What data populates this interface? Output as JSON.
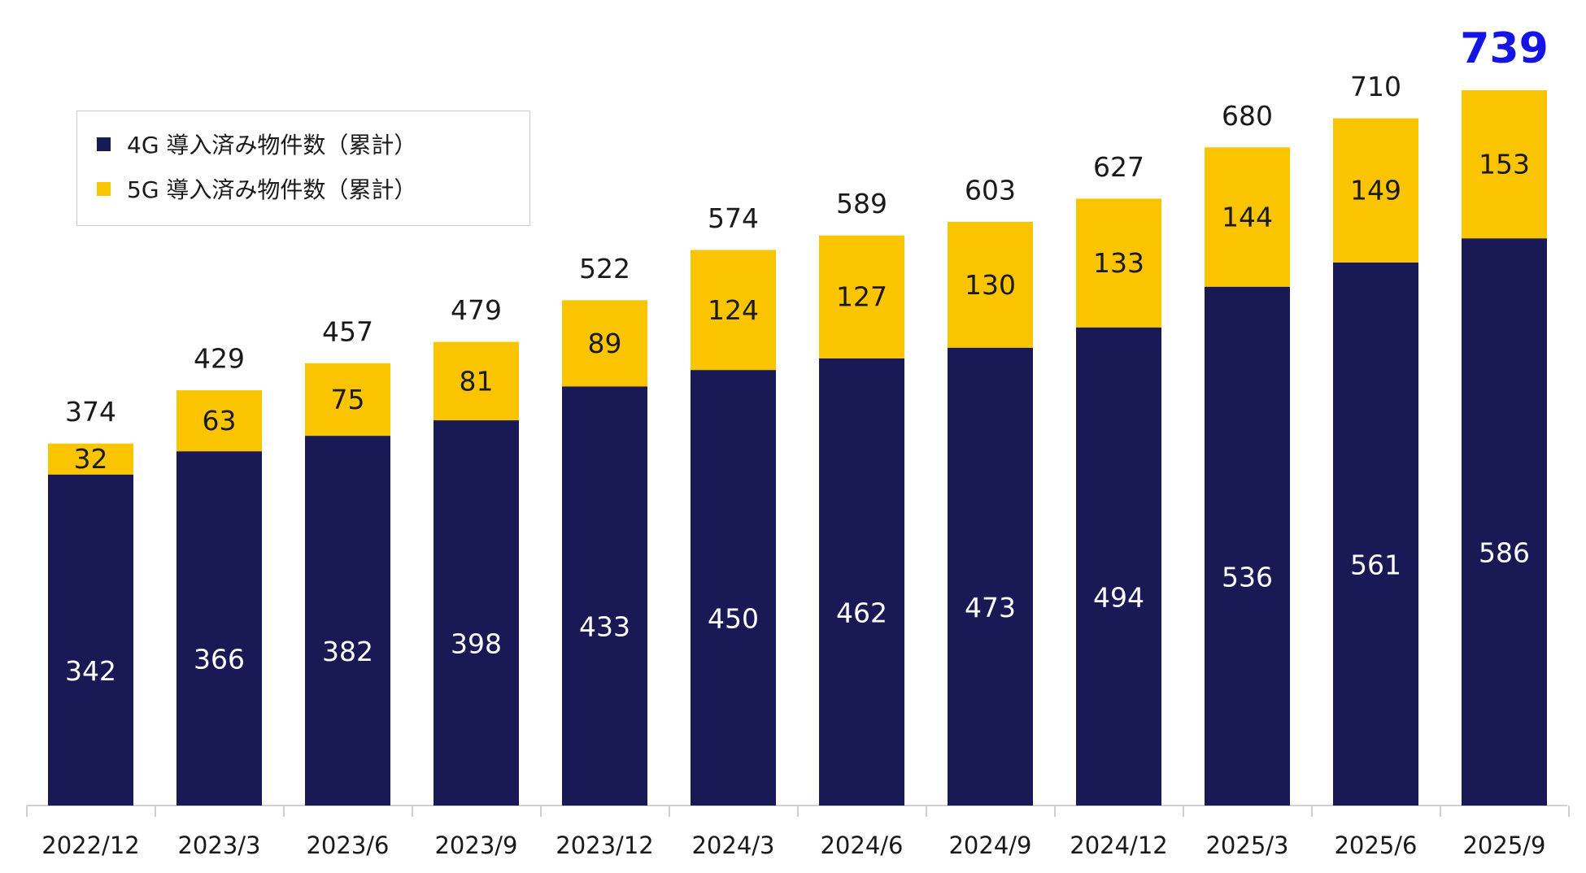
{
  "chart_data": {
    "type": "bar",
    "stacked": true,
    "categories": [
      "2022/12",
      "2023/3",
      "2023/6",
      "2023/9",
      "2023/12",
      "2024/3",
      "2024/6",
      "2024/9",
      "2024/12",
      "2025/3",
      "2025/6",
      "2025/9"
    ],
    "series": [
      {
        "name": "4G 導入済み物件数（累計）",
        "color": "#191a55",
        "values": [
          342,
          366,
          382,
          398,
          433,
          450,
          462,
          473,
          494,
          536,
          561,
          586
        ]
      },
      {
        "name": "5G 導入済み物件数（累計）",
        "color": "#fac400",
        "values": [
          32,
          63,
          75,
          81,
          89,
          124,
          127,
          130,
          133,
          144,
          149,
          153
        ]
      }
    ],
    "totals": [
      374,
      429,
      457,
      479,
      522,
      574,
      589,
      603,
      627,
      680,
      710,
      739
    ],
    "highlight_color": "#1414e6",
    "ylim": [
      0,
      739
    ],
    "grid": false,
    "legend_position": "top-left"
  },
  "legend": {
    "items": [
      {
        "label": "4G 導入済み物件数（累計）",
        "color": "#191a55"
      },
      {
        "label": "5G 導入済み物件数（累計）",
        "color": "#fac400"
      }
    ]
  }
}
